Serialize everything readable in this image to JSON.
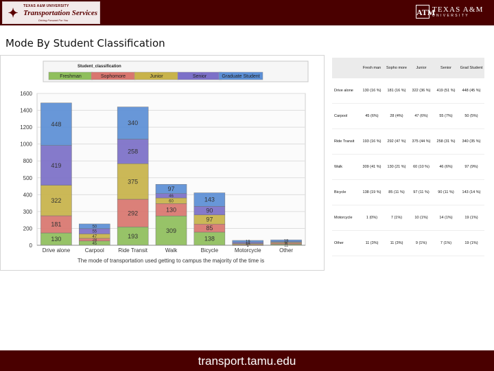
{
  "header": {
    "logo_left": {
      "line1": "TEXAS A&M UNIVERSITY",
      "line2": "Transportation Services",
      "tagline": "Driving Forward For You",
      "emblem_icon": "tx-shield-icon"
    },
    "logo_right": {
      "mark": "ATM",
      "name": "TEXAS A&M",
      "sub": "UNIVERSITY",
      "emblem_icon": "atm-logo-icon"
    },
    "background": "#4a0000"
  },
  "page_title": "Mode By Student Classification",
  "footer": {
    "url": "transport.tamu.edu",
    "background": "#4a0000"
  },
  "chart_data": {
    "type": "bar",
    "stacked": true,
    "legend_title": "Student_classification",
    "legend_position": "top",
    "categories": [
      "Drive alone",
      "Carpool",
      "Ride Transit",
      "Walk",
      "Bicycle",
      "Motorcycle",
      "Other"
    ],
    "series": [
      {
        "name": "Freshman",
        "color": "#8fbf5c",
        "values": [
          130,
          45,
          193,
          309,
          138,
          1,
          11
        ]
      },
      {
        "name": "Sophomore",
        "color": "#d9766f",
        "values": [
          181,
          28,
          292,
          130,
          85,
          7,
          11
        ]
      },
      {
        "name": "Junior",
        "color": "#c8b34a",
        "values": [
          322,
          47,
          375,
          60,
          97,
          10,
          9
        ]
      },
      {
        "name": "Senior",
        "color": "#7c70c8",
        "values": [
          419,
          55,
          258,
          46,
          90,
          14,
          7
        ]
      },
      {
        "name": "Graduate Student",
        "color": "#5c8fd6",
        "values": [
          448,
          50,
          340,
          97,
          143,
          19,
          19
        ]
      }
    ],
    "data_labels": [
      [
        "130",
        "181",
        "322",
        "419",
        "448"
      ],
      [
        "45",
        "28",
        "47",
        "55",
        "50"
      ],
      [
        "193",
        "292",
        "375",
        "258",
        "340"
      ],
      [
        "309",
        "130",
        "60",
        "46",
        "97"
      ],
      [
        "138",
        "85",
        "97",
        "90",
        "143"
      ],
      [
        "1",
        "7",
        "10",
        "14",
        "19"
      ],
      [
        "11",
        "11",
        "9",
        "7",
        "19"
      ]
    ],
    "y_ticks": [
      "0",
      "200",
      "300",
      "400",
      "500",
      "800",
      "1000",
      "1200",
      "1400",
      "1600"
    ],
    "ylim": [
      0,
      1600
    ],
    "grid": true,
    "caption": "The mode of transportation used getting to campus the majority of the time is"
  },
  "table": {
    "headers": [
      "",
      "Fresh man",
      "Sopho more",
      "Junior",
      "Senior",
      "Grad Student"
    ],
    "rows": [
      [
        "Drive alone",
        "130 (16 %)",
        "181 (16 %)",
        "322 (36 %)",
        "419 (51 %)",
        "448 (45 %)"
      ],
      [
        "Carpool",
        "45 (6%)",
        "28 (4%)",
        "47 (6%)",
        "55 (7%)",
        "50 (5%)"
      ],
      [
        "Ride Transit",
        "193 (16 %)",
        "292 (47 %)",
        "375 (44 %)",
        "258 (31 %)",
        "340 (35 %)"
      ],
      [
        "Walk",
        "309 (41 %)",
        "130 (21 %)",
        "60 (10 %)",
        "46 (6%)",
        "97 (9%)"
      ],
      [
        "Bicycle",
        "138 (19 %)",
        "85 (11 %)",
        "97 (11 %)",
        "90 (11 %)",
        "143 (14 %)"
      ],
      [
        "Motorcycle",
        "1 (0%)",
        "7 (1%)",
        "10 (1%)",
        "14 (1%)",
        "19 (1%)"
      ],
      [
        "Other",
        "11 (3%)",
        "11 (3%)",
        "9 (1%)",
        "7 (1%)",
        "19 (1%)"
      ]
    ]
  }
}
